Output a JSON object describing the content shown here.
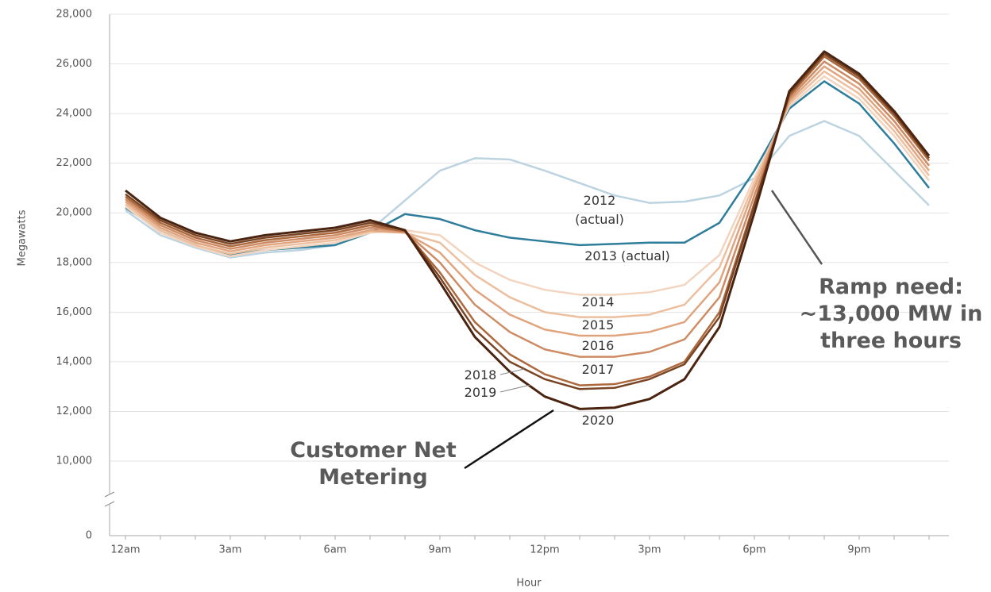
{
  "chart_data": {
    "type": "line",
    "x_label": "Hour",
    "y_label": "Megawatts",
    "categories": [
      "12am",
      null,
      null,
      "3am",
      null,
      null,
      "6am",
      null,
      null,
      "9am",
      null,
      null,
      "12pm",
      null,
      null,
      "3pm",
      null,
      null,
      "6pm",
      null,
      null,
      "9pm",
      null,
      null
    ],
    "ylim": [
      0,
      28000
    ],
    "axis_break": [
      0,
      10000
    ],
    "yticks": [
      0,
      {
        "value": 10000,
        "label": "10,000"
      },
      {
        "value": 12000,
        "label": "12,000"
      },
      {
        "value": 14000,
        "label": "14,000"
      },
      {
        "value": 16000,
        "label": "16,000"
      },
      {
        "value": 18000,
        "label": "18,000"
      },
      {
        "value": 20000,
        "label": "20,000"
      },
      {
        "value": 22000,
        "label": "22,000"
      },
      {
        "value": 24000,
        "label": "24,000"
      },
      {
        "value": 26000,
        "label": "26,000"
      },
      {
        "value": 28000,
        "label": "28,000"
      }
    ],
    "grid": true,
    "series": [
      {
        "name": "2012 (actual)",
        "color": "#bcd3e0",
        "values": [
          20100,
          19100,
          18600,
          18200,
          18400,
          18500,
          18700,
          19300,
          20500,
          21700,
          22200,
          22150,
          21700,
          21200,
          20700,
          20400,
          20450,
          20700,
          21400,
          23100,
          23700,
          23100,
          21700,
          20300
        ]
      },
      {
        "name": "2013 (actual)",
        "color": "#2e7d9a",
        "values": [
          20200,
          19300,
          18700,
          18300,
          18500,
          18600,
          18700,
          19200,
          19950,
          19750,
          19300,
          19000,
          18850,
          18700,
          18750,
          18800,
          18800,
          19600,
          21700,
          24200,
          25300,
          24400,
          22800,
          21000
        ]
      },
      {
        "name": "2014",
        "color": "#f3d5bf",
        "values": [
          20250,
          19200,
          18650,
          18250,
          18500,
          18650,
          18800,
          19200,
          19300,
          19100,
          18000,
          17300,
          16900,
          16700,
          16700,
          16800,
          17100,
          18300,
          21400,
          24300,
          25500,
          24600,
          23100,
          21300
        ]
      },
      {
        "name": "2015",
        "color": "#ecbf9f",
        "values": [
          20350,
          19300,
          18700,
          18350,
          18600,
          18750,
          18900,
          19250,
          19200,
          18800,
          17500,
          16600,
          16000,
          15800,
          15800,
          15900,
          16300,
          17800,
          21200,
          24400,
          25700,
          24800,
          23300,
          21500
        ]
      },
      {
        "name": "2016",
        "color": "#e0a47f",
        "values": [
          20450,
          19400,
          18800,
          18450,
          18700,
          18850,
          19000,
          19300,
          19200,
          18400,
          16900,
          15900,
          15300,
          15050,
          15050,
          15200,
          15600,
          17200,
          21000,
          24500,
          25900,
          25000,
          23500,
          21700
        ]
      },
      {
        "name": "2017",
        "color": "#cd8c65",
        "values": [
          20550,
          19500,
          18900,
          18550,
          18800,
          18950,
          19100,
          19400,
          19250,
          18000,
          16300,
          15200,
          14500,
          14200,
          14200,
          14400,
          14900,
          16600,
          20700,
          24600,
          26100,
          25200,
          23700,
          21900
        ]
      },
      {
        "name": "2018",
        "color": "#ad693e",
        "values": [
          20650,
          19600,
          19000,
          18650,
          18900,
          19050,
          19200,
          19500,
          19250,
          17600,
          15600,
          14300,
          13500,
          13050,
          13100,
          13400,
          14000,
          16000,
          20400,
          24700,
          26300,
          25400,
          23900,
          22100
        ]
      },
      {
        "name": "2019",
        "color": "#7a4524",
        "values": [
          20750,
          19700,
          19100,
          18750,
          19000,
          19150,
          19300,
          19600,
          19300,
          17400,
          15300,
          14000,
          13300,
          12900,
          12950,
          13300,
          13900,
          15800,
          20300,
          24800,
          26400,
          25500,
          24000,
          22200
        ]
      },
      {
        "name": "2020",
        "color": "#4a2410",
        "values": [
          20900,
          19800,
          19200,
          18850,
          19100,
          19250,
          19400,
          19700,
          19300,
          17200,
          15000,
          13600,
          12600,
          12100,
          12150,
          12500,
          13300,
          15400,
          20000,
          24900,
          26500,
          25600,
          24100,
          22300
        ]
      }
    ],
    "annotations": [
      "Customer Net Metering",
      "Ramp need: ~13,000 MW in three hours"
    ]
  }
}
